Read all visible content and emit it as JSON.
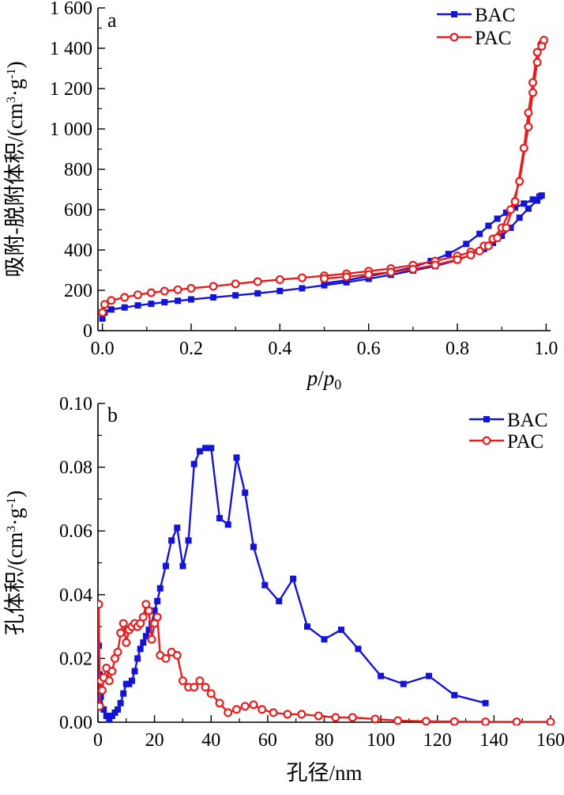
{
  "chart_data": [
    {
      "type": "line",
      "panel_label": "a",
      "xlabel_parts": [
        "p",
        "/",
        "p",
        "0"
      ],
      "ylabel_parts": [
        "吸附-脱附体积/(cm",
        "3",
        "·g",
        "-1",
        ")"
      ],
      "xlim": [
        -0.01,
        1.01
      ],
      "ylim": [
        0,
        1600
      ],
      "x_ticks": [
        {
          "value": 0.0,
          "label": "0.0"
        },
        {
          "value": 0.2,
          "label": "0.2"
        },
        {
          "value": 0.4,
          "label": "0.4"
        },
        {
          "value": 0.6,
          "label": "0.6"
        },
        {
          "value": 0.8,
          "label": "0.8"
        },
        {
          "value": 1.0,
          "label": "1.0"
        }
      ],
      "y_ticks": [
        {
          "value": 0,
          "label": "0"
        },
        {
          "value": 200,
          "label": "200"
        },
        {
          "value": 400,
          "label": "400"
        },
        {
          "value": 600,
          "label": "600"
        },
        {
          "value": 800,
          "label": "800"
        },
        {
          "value": 1000,
          "label": "1 000"
        },
        {
          "value": 1200,
          "label": "1 200"
        },
        {
          "value": 1400,
          "label": "1 400"
        },
        {
          "value": 1600,
          "label": "1 600"
        }
      ],
      "legend_position": "top-right",
      "series": [
        {
          "name": "BAC",
          "color": "#1414d8",
          "marker": "square",
          "x": [
            0.0,
            0.005,
            0.02,
            0.05,
            0.08,
            0.11,
            0.14,
            0.17,
            0.2,
            0.25,
            0.3,
            0.35,
            0.4,
            0.45,
            0.5,
            0.55,
            0.6,
            0.65,
            0.7,
            0.75,
            0.8,
            0.83,
            0.86,
            0.88,
            0.9,
            0.92,
            0.94,
            0.96,
            0.98,
            0.99,
            0.985,
            0.97,
            0.95,
            0.93,
            0.91,
            0.89,
            0.87,
            0.85,
            0.82,
            0.78,
            0.74,
            0.7,
            0.65,
            0.6,
            0.55,
            0.5
          ],
          "y": [
            60,
            90,
            105,
            115,
            125,
            133,
            141,
            148,
            155,
            165,
            175,
            185,
            197,
            210,
            225,
            240,
            257,
            277,
            298,
            320,
            350,
            375,
            405,
            435,
            470,
            510,
            560,
            605,
            645,
            670,
            665,
            650,
            630,
            610,
            585,
            555,
            520,
            480,
            430,
            380,
            345,
            315,
            290,
            270,
            250,
            235
          ]
        },
        {
          "name": "PAC",
          "color": "#e81e1e",
          "marker": "circle",
          "x": [
            0.0,
            0.005,
            0.02,
            0.05,
            0.08,
            0.11,
            0.14,
            0.17,
            0.2,
            0.25,
            0.3,
            0.35,
            0.4,
            0.45,
            0.5,
            0.55,
            0.6,
            0.65,
            0.7,
            0.75,
            0.8,
            0.83,
            0.86,
            0.88,
            0.9,
            0.92,
            0.94,
            0.96,
            0.97,
            0.98,
            0.99,
            0.995,
            0.99,
            0.98,
            0.97,
            0.96,
            0.95,
            0.93,
            0.91,
            0.89,
            0.87,
            0.85,
            0.83,
            0.8,
            0.75,
            0.7,
            0.65,
            0.6,
            0.55,
            0.5
          ],
          "y": [
            90,
            130,
            150,
            165,
            178,
            188,
            196,
            203,
            210,
            220,
            232,
            243,
            253,
            262,
            272,
            282,
            295,
            308,
            325,
            345,
            370,
            390,
            420,
            455,
            510,
            600,
            740,
            1010,
            1180,
            1330,
            1420,
            1440,
            1410,
            1380,
            1230,
            1080,
            905,
            640,
            510,
            460,
            420,
            395,
            375,
            352,
            325,
            305,
            290,
            278,
            267,
            258
          ]
        }
      ]
    },
    {
      "type": "line",
      "panel_label": "b",
      "xlabel_parts": [
        "孔径/nm"
      ],
      "ylabel_parts": [
        "孔体积/(cm",
        "3",
        "·g",
        "-1",
        ")"
      ],
      "xlim": [
        0,
        160
      ],
      "ylim": [
        0,
        0.1
      ],
      "x_ticks": [
        {
          "value": 0,
          "label": "0"
        },
        {
          "value": 20,
          "label": "20"
        },
        {
          "value": 40,
          "label": "40"
        },
        {
          "value": 60,
          "label": "60"
        },
        {
          "value": 80,
          "label": "80"
        },
        {
          "value": 100,
          "label": "100"
        },
        {
          "value": 120,
          "label": "120"
        },
        {
          "value": 140,
          "label": "140"
        },
        {
          "value": 160,
          "label": "160"
        }
      ],
      "y_ticks": [
        {
          "value": 0.0,
          "label": "0.00"
        },
        {
          "value": 0.02,
          "label": "0.02"
        },
        {
          "value": 0.04,
          "label": "0.04"
        },
        {
          "value": 0.06,
          "label": "0.06"
        },
        {
          "value": 0.08,
          "label": "0.08"
        },
        {
          "value": 0.1,
          "label": "0.10"
        }
      ],
      "legend_position": "top-right",
      "series": [
        {
          "name": "BAC",
          "color": "#1414d8",
          "marker": "square",
          "x": [
            0.3,
            0.6,
            1,
            2,
            3,
            4,
            5,
            6,
            7,
            8,
            9,
            10,
            11,
            12,
            13,
            14,
            15,
            16,
            17,
            18,
            19,
            20,
            21,
            22,
            24,
            26,
            28,
            30,
            32,
            34,
            36,
            38,
            40,
            43,
            46,
            49,
            52,
            55,
            59,
            64,
            69,
            74,
            80,
            86,
            92,
            100,
            108,
            117,
            126,
            137
          ],
          "y": [
            0.024,
            0.015,
            0.008,
            0.004,
            0.002,
            0.001,
            0.002,
            0.003,
            0.004,
            0.006,
            0.009,
            0.012,
            0.012,
            0.013,
            0.016,
            0.02,
            0.023,
            0.025,
            0.027,
            0.029,
            0.031,
            0.035,
            0.038,
            0.042,
            0.049,
            0.057,
            0.061,
            0.049,
            0.057,
            0.081,
            0.085,
            0.086,
            0.086,
            0.064,
            0.062,
            0.083,
            0.072,
            0.055,
            0.043,
            0.038,
            0.045,
            0.03,
            0.026,
            0.029,
            0.023,
            0.0145,
            0.012,
            0.0145,
            0.0085,
            0.006
          ]
        },
        {
          "name": "PAC",
          "color": "#e81e1e",
          "marker": "circle",
          "x": [
            0.3,
            0.6,
            1,
            1.5,
            2,
            3,
            4,
            5,
            6,
            7,
            8,
            9,
            10,
            11,
            12,
            13,
            14,
            15,
            16,
            17,
            18,
            19,
            20,
            21,
            22,
            24,
            26,
            28,
            30,
            32,
            34,
            36,
            38,
            40,
            43,
            46,
            49,
            52,
            55,
            58,
            62,
            67,
            72,
            78,
            84,
            90,
            98,
            106,
            116,
            126,
            137,
            148,
            160
          ],
          "y": [
            0.037,
            0.005,
            0.013,
            0.01,
            0.014,
            0.017,
            0.013,
            0.016,
            0.02,
            0.022,
            0.028,
            0.031,
            0.025,
            0.029,
            0.03,
            0.031,
            0.03,
            0.031,
            0.033,
            0.037,
            0.035,
            0.026,
            0.031,
            0.033,
            0.021,
            0.02,
            0.022,
            0.021,
            0.013,
            0.011,
            0.011,
            0.013,
            0.011,
            0.009,
            0.006,
            0.003,
            0.004,
            0.005,
            0.0055,
            0.004,
            0.003,
            0.0025,
            0.0025,
            0.002,
            0.0015,
            0.0015,
            0.001,
            0.0005,
            0.0003,
            0.0002,
            0.0001,
            0.0001,
            0.0001
          ]
        }
      ]
    }
  ]
}
